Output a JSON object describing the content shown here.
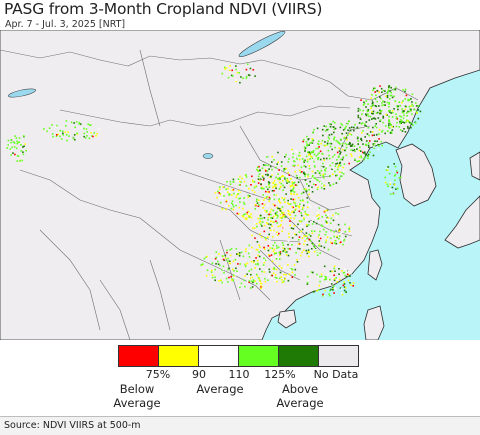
{
  "title": "PASG from 3-Month Cropland NDVI (VIIRS)",
  "subtitle": "Apr. 7 - Jul. 3, 2025 [NRT]",
  "colors": {
    "ocean": "#b8f4f8",
    "land": "#efedf0",
    "border": "#6e6e6e",
    "coast": "#2b2b2b",
    "lake": "#9ad8ee"
  },
  "legend": {
    "swatches": [
      {
        "label": "below 75%",
        "color": "#ff0000"
      },
      {
        "label": "75-90%",
        "color": "#ffff00"
      },
      {
        "label": "90-110%",
        "color": "#ffffff"
      },
      {
        "label": "110-125%",
        "color": "#66ff22"
      },
      {
        "label": "above 125%",
        "color": "#1e7a05"
      },
      {
        "label": "No Data",
        "color": "#eceaec"
      }
    ],
    "ticks": [
      "75%",
      "90",
      "110",
      "125%"
    ],
    "no_data_label": "No Data",
    "below_label": "Below\nAverage",
    "average_label": "Average",
    "above_label": "Above\nAverage"
  },
  "source": "Source: NDVI VIIRS at 500-m"
}
